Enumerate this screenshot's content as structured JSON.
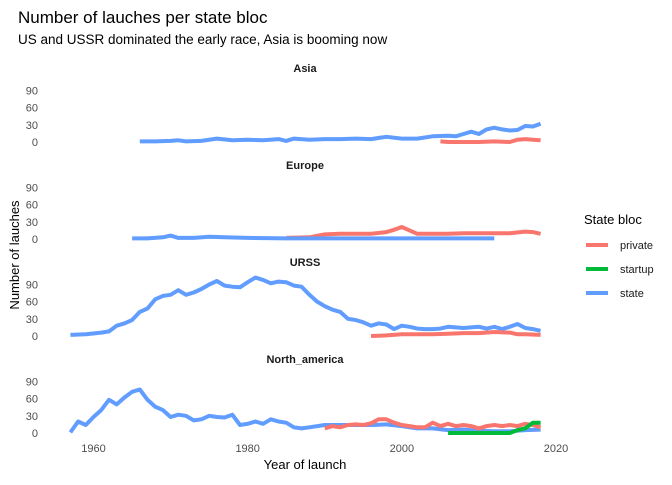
{
  "chart_data": {
    "type": "line",
    "title": "Number of lauches per state bloc",
    "subtitle": "US and USSR dominated the early race, Asia is booming now",
    "xlabel": "Year of launch",
    "ylabel": "Number of lauches",
    "xlim": [
      1955,
      2020
    ],
    "ylim": [
      0,
      110
    ],
    "x_ticks": [
      1960,
      1980,
      2000,
      2020
    ],
    "y_ticks": [
      0,
      30,
      60,
      90
    ],
    "grid": false,
    "legend_position": "right",
    "legend": {
      "title": "State bloc",
      "entries": [
        {
          "name": "private",
          "color": "#F8766D"
        },
        {
          "name": "startup",
          "color": "#00BA38"
        },
        {
          "name": "state",
          "color": "#619CFF"
        }
      ]
    },
    "panels": [
      {
        "name": "Asia",
        "series": [
          {
            "name": "state",
            "color": "#619CFF",
            "x": [
              1966,
              1968,
              1970,
              1971,
              1972,
              1974,
              1976,
              1978,
              1980,
              1982,
              1984,
              1985,
              1986,
              1988,
              1990,
              1992,
              1994,
              1996,
              1998,
              2000,
              2002,
              2004,
              2006,
              2007,
              2008,
              2009,
              2010,
              2011,
              2012,
              2013,
              2014,
              2015,
              2016,
              2017,
              2018
            ],
            "y": [
              1,
              1,
              2,
              3,
              1,
              2,
              6,
              3,
              4,
              3,
              5,
              2,
              6,
              4,
              5,
              5,
              6,
              5,
              9,
              6,
              6,
              10,
              11,
              10,
              14,
              18,
              14,
              22,
              25,
              22,
              20,
              21,
              28,
              27,
              32
            ]
          },
          {
            "name": "private",
            "color": "#F8766D",
            "x": [
              2005,
              2006,
              2008,
              2010,
              2012,
              2014,
              2015,
              2016,
              2017,
              2018
            ],
            "y": [
              1,
              0,
              0,
              0,
              1,
              0,
              4,
              5,
              4,
              3
            ]
          }
        ]
      },
      {
        "name": "Europe",
        "series": [
          {
            "name": "private",
            "color": "#F8766D",
            "x": [
              1985,
              1988,
              1990,
              1992,
              1994,
              1996,
              1998,
              1999,
              2000,
              2001,
              2002,
              2004,
              2006,
              2008,
              2010,
              2012,
              2014,
              2016,
              2017,
              2018
            ],
            "y": [
              2,
              3,
              8,
              9,
              9,
              9,
              12,
              16,
              21,
              15,
              9,
              9,
              9,
              10,
              10,
              10,
              10,
              13,
              12,
              9
            ]
          },
          {
            "name": "state",
            "color": "#619CFF",
            "x": [
              1965,
              1967,
              1969,
              1970,
              1971,
              1973,
              1975,
              1977,
              1980,
              1985,
              1990,
              1995,
              2000,
              2005,
              2010,
              2012
            ],
            "y": [
              1,
              1,
              3,
              6,
              2,
              2,
              4,
              3,
              2,
              1,
              1,
              1,
              1,
              1,
              1,
              1
            ]
          }
        ]
      },
      {
        "name": "URSS",
        "series": [
          {
            "name": "state",
            "color": "#619CFF",
            "x": [
              1957,
              1959,
              1961,
              1962,
              1963,
              1964,
              1965,
              1966,
              1967,
              1968,
              1969,
              1970,
              1971,
              1972,
              1973,
              1974,
              1975,
              1976,
              1977,
              1978,
              1979,
              1980,
              1981,
              1982,
              1983,
              1984,
              1985,
              1986,
              1987,
              1988,
              1989,
              1990,
              1991,
              1992,
              1993,
              1994,
              1995,
              1996,
              1997,
              1998,
              1999,
              2000,
              2001,
              2002,
              2003,
              2004,
              2005,
              2006,
              2008,
              2010,
              2011,
              2012,
              2013,
              2014,
              2015,
              2016,
              2017,
              2018
            ],
            "y": [
              2,
              3,
              6,
              8,
              18,
              22,
              28,
              42,
              48,
              64,
              70,
              72,
              80,
              72,
              76,
              82,
              90,
              96,
              88,
              86,
              85,
              94,
              102,
              98,
              92,
              95,
              94,
              88,
              86,
              72,
              60,
              52,
              46,
              42,
              30,
              28,
              24,
              18,
              22,
              20,
              12,
              18,
              16,
              13,
              12,
              12,
              13,
              16,
              14,
              16,
              13,
              16,
              12,
              16,
              21,
              14,
              12,
              9
            ]
          },
          {
            "name": "private",
            "color": "#F8766D",
            "x": [
              1996,
              1998,
              2000,
              2002,
              2004,
              2006,
              2008,
              2010,
              2012,
              2014,
              2015,
              2016,
              2018
            ],
            "y": [
              0,
              1,
              3,
              3,
              3,
              4,
              5,
              5,
              7,
              6,
              3,
              3,
              2
            ]
          }
        ]
      },
      {
        "name": "North_america",
        "series": [
          {
            "name": "state",
            "color": "#619CFF",
            "x": [
              1957,
              1958,
              1959,
              1960,
              1961,
              1962,
              1963,
              1964,
              1965,
              1966,
              1967,
              1968,
              1969,
              1970,
              1971,
              1972,
              1973,
              1974,
              1975,
              1976,
              1977,
              1978,
              1979,
              1980,
              1981,
              1982,
              1983,
              1984,
              1985,
              1986,
              1987,
              1988,
              1990,
              1992,
              1994,
              1996,
              1998,
              2000,
              2002,
              2004,
              2006,
              2008,
              2010,
              2012,
              2014,
              2016,
              2018
            ],
            "y": [
              1,
              20,
              14,
              28,
              40,
              58,
              50,
              62,
              72,
              76,
              58,
              46,
              40,
              28,
              32,
              30,
              22,
              24,
              30,
              28,
              27,
              32,
              14,
              16,
              20,
              16,
              24,
              20,
              18,
              10,
              8,
              10,
              14,
              14,
              14,
              14,
              15,
              12,
              8,
              8,
              5,
              6,
              4,
              3,
              3,
              5,
              6
            ]
          },
          {
            "name": "private",
            "color": "#F8766D",
            "x": [
              1990,
              1991,
              1992,
              1993,
              1994,
              1995,
              1996,
              1997,
              1998,
              1999,
              2000,
              2001,
              2002,
              2003,
              2004,
              2005,
              2006,
              2007,
              2008,
              2009,
              2010,
              2011,
              2012,
              2013,
              2014,
              2015,
              2016,
              2017,
              2018
            ],
            "y": [
              8,
              12,
              10,
              14,
              15,
              14,
              17,
              24,
              24,
              18,
              14,
              12,
              10,
              10,
              18,
              12,
              16,
              12,
              14,
              12,
              8,
              12,
              14,
              12,
              14,
              12,
              16,
              14,
              10
            ]
          },
          {
            "name": "startup",
            "color": "#00BA38",
            "x": [
              2006,
              2008,
              2010,
              2012,
              2014,
              2015,
              2016,
              2017,
              2018
            ],
            "y": [
              0,
              0,
              0,
              0,
              0,
              5,
              8,
              18,
              18
            ]
          }
        ]
      }
    ]
  }
}
